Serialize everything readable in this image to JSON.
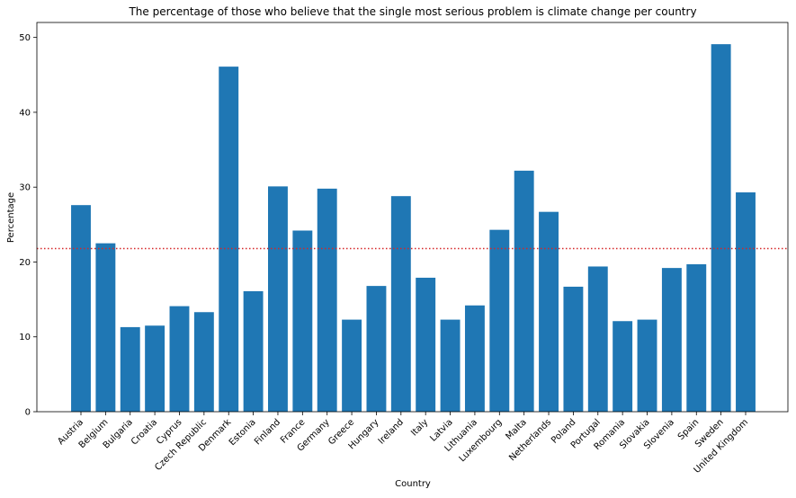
{
  "chart_data": {
    "type": "bar",
    "title": "The percentage of those who believe that the single most serious problem is climate change per country",
    "xlabel": "Country",
    "ylabel": "Percentage",
    "ylim": [
      0,
      52
    ],
    "yticks": [
      0,
      10,
      20,
      30,
      40,
      50
    ],
    "grid": false,
    "bar_color": "#1f77b4",
    "reference_line": {
      "value": 21.8,
      "color": "#d62728",
      "style": "dotted"
    },
    "categories": [
      "Austria",
      "Belgium",
      "Bulgaria",
      "Croatia",
      "Cyprus",
      "Czech Republic",
      "Denmark",
      "Estonia",
      "Finland",
      "France",
      "Germany",
      "Greece",
      "Hungary",
      "Ireland",
      "Italy",
      "Latvia",
      "Lithuania",
      "Luxembourg",
      "Malta",
      "Netherlands",
      "Poland",
      "Portugal",
      "Romania",
      "Slovakia",
      "Slovenia",
      "Spain",
      "Sweden",
      "United Kingdom"
    ],
    "values": [
      27.6,
      22.5,
      11.3,
      11.5,
      14.1,
      13.3,
      46.1,
      16.1,
      30.1,
      24.2,
      29.8,
      12.3,
      16.8,
      28.8,
      17.9,
      12.3,
      14.2,
      24.3,
      32.2,
      26.7,
      16.7,
      19.4,
      12.1,
      12.3,
      19.2,
      19.7,
      49.1,
      29.3
    ]
  }
}
